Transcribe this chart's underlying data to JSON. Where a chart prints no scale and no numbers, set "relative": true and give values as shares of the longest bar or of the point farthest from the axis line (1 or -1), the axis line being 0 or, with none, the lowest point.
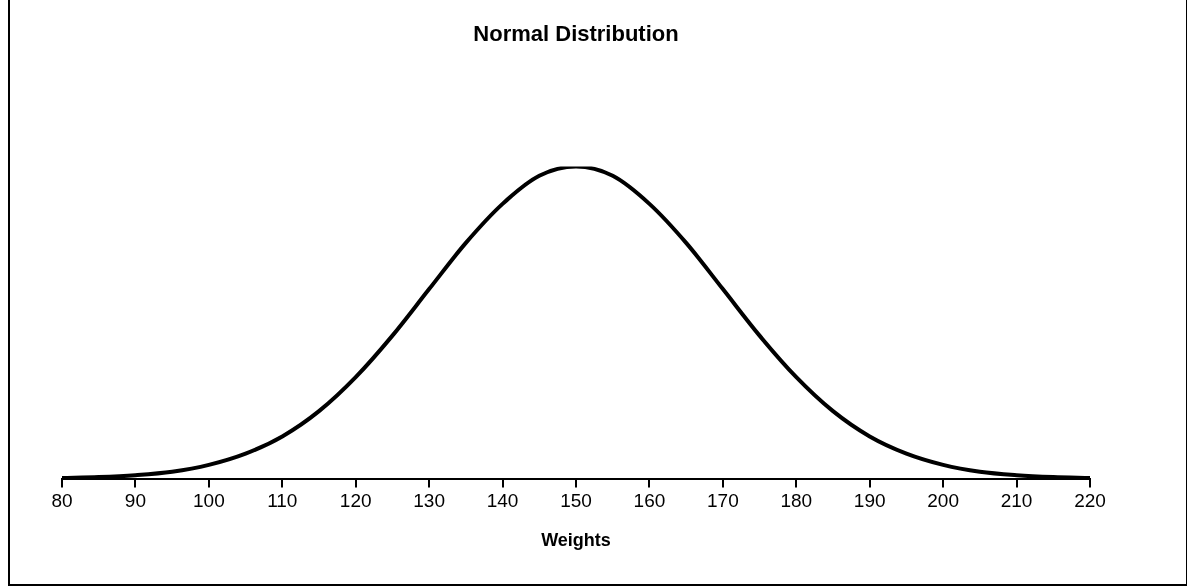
{
  "chart_data": {
    "type": "line",
    "title": "Normal Distribution",
    "xlabel": "Weights",
    "relative": true,
    "x": [
      80,
      85,
      90,
      95,
      100,
      105,
      110,
      115,
      120,
      125,
      130,
      135,
      140,
      145,
      150,
      155,
      160,
      165,
      170,
      175,
      180,
      185,
      190,
      195,
      200,
      205,
      210,
      215,
      220
    ],
    "series": [
      {
        "color": "#000000",
        "values": [
          0.002,
          0.005,
          0.011,
          0.022,
          0.044,
          0.08,
          0.135,
          0.216,
          0.325,
          0.458,
          0.607,
          0.755,
          0.88,
          0.97,
          1,
          0.97,
          0.88,
          0.755,
          0.607,
          0.458,
          0.325,
          0.216,
          0.135,
          0.08,
          0.044,
          0.022,
          0.011,
          0.005,
          0.002
        ]
      }
    ],
    "xlim": [
      80,
      220
    ],
    "xticks": [
      80,
      90,
      100,
      110,
      120,
      130,
      140,
      150,
      160,
      170,
      180,
      190,
      200,
      210,
      220
    ],
    "grid": false,
    "legend": false,
    "marker": "none",
    "line_style": "solid"
  }
}
